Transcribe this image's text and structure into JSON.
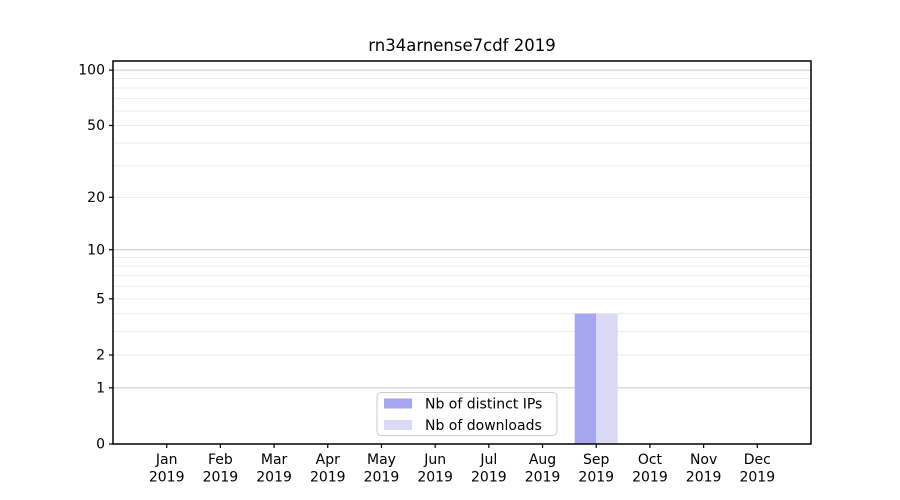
{
  "window": {
    "background": "#ffffff"
  },
  "chart_data": {
    "type": "bar",
    "title": "rn34arnense7cdf 2019",
    "xlabel": "",
    "ylabel": "",
    "categories": [
      "Jan",
      "Feb",
      "Mar",
      "Apr",
      "May",
      "Jun",
      "Jul",
      "Aug",
      "Sep",
      "Oct",
      "Nov",
      "Dec"
    ],
    "category_year": "2019",
    "series": [
      {
        "name": "Nb of distinct IPs",
        "color": "#a6a6ee",
        "values": [
          0,
          0,
          0,
          0,
          0,
          0,
          0,
          0,
          4,
          0,
          0,
          0
        ]
      },
      {
        "name": "Nb of downloads",
        "color": "#dadaf7",
        "values": [
          0,
          0,
          0,
          0,
          0,
          0,
          0,
          0,
          4,
          0,
          0,
          0
        ]
      }
    ],
    "yscale": "log1p",
    "ylim": [
      0,
      112
    ],
    "y_tick_values": [
      0,
      1,
      2,
      5,
      10,
      20,
      50,
      100
    ],
    "y_tick_labels": [
      "0",
      "1",
      "2",
      "5",
      "10",
      "20",
      "50",
      "100"
    ],
    "major_gridlines": [
      1,
      10,
      100
    ],
    "minor_gridlines": [
      2,
      3,
      4,
      5,
      6,
      7,
      8,
      9,
      20,
      30,
      40,
      50,
      60,
      70,
      80,
      90
    ],
    "grid": "on",
    "legend": {
      "position": "lower-center-inside",
      "entries": [
        "Nb of distinct IPs",
        "Nb of downloads"
      ]
    }
  },
  "style": {
    "axis_color": "#000000",
    "text_color": "#000000",
    "major_grid_color": "#c8c8c8",
    "minor_grid_color": "#ebebeb",
    "legend_border_color": "#cccccc",
    "plot_background": "#ffffff"
  }
}
